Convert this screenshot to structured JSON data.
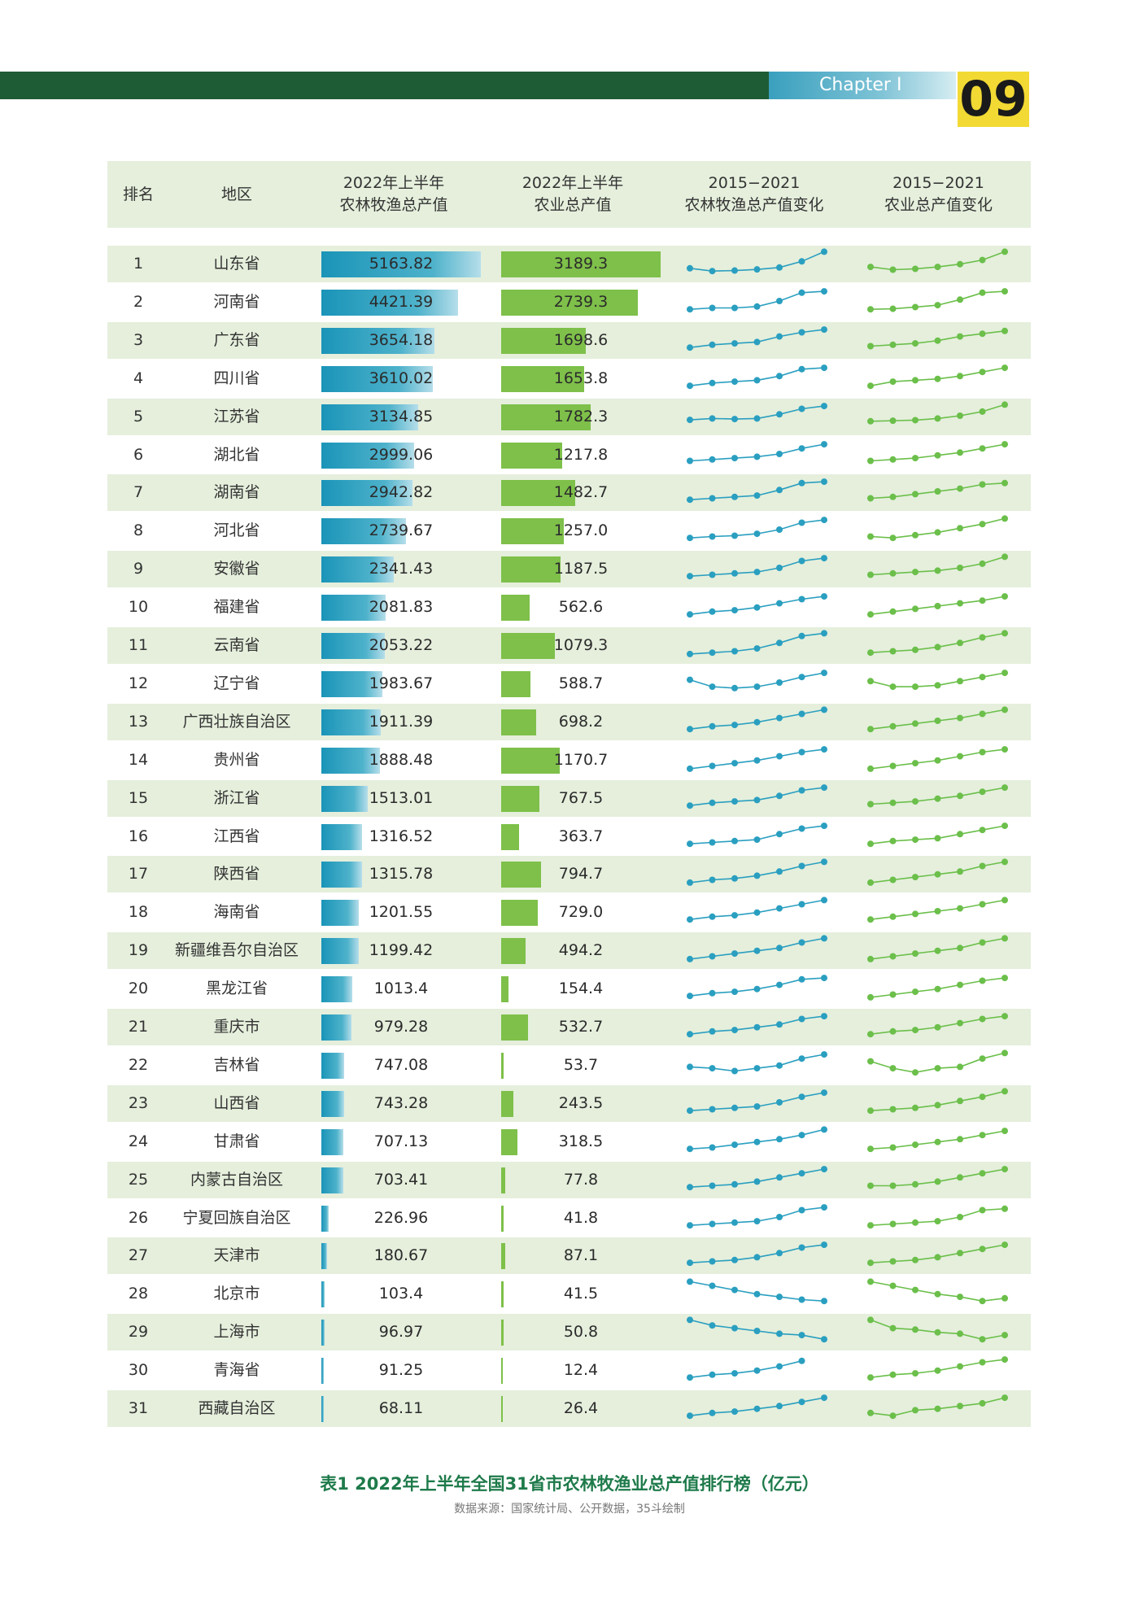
{
  "header": {
    "chapter": "Chapter I",
    "page_number": "09"
  },
  "table": {
    "columns": [
      "排名",
      "地区",
      "2022年上半年\n农林牧渔总产值",
      "2022年上半年\n农业总产值",
      "2015−2021\n农林牧渔总产值变化",
      "2015−2021\n农业总产值变化"
    ],
    "rows": [
      {
        "rank": "1",
        "region": "山东省",
        "v1": "5163.82",
        "v2": "3189.3",
        "t1": [
          0.3,
          0.2,
          0.22,
          0.26,
          0.33,
          0.55,
          0.9
        ],
        "t2": [
          0.35,
          0.25,
          0.28,
          0.35,
          0.45,
          0.6,
          0.9
        ]
      },
      {
        "rank": "2",
        "region": "河南省",
        "v1": "4421.39",
        "v2": "2739.3",
        "t1": [
          0.2,
          0.25,
          0.25,
          0.3,
          0.5,
          0.8,
          0.85
        ],
        "t2": [
          0.2,
          0.22,
          0.28,
          0.35,
          0.55,
          0.8,
          0.85
        ]
      },
      {
        "rank": "3",
        "region": "广东省",
        "v1": "3654.18",
        "v2": "1698.6",
        "t1": [
          0.2,
          0.3,
          0.35,
          0.4,
          0.6,
          0.75,
          0.85
        ],
        "t2": [
          0.25,
          0.3,
          0.35,
          0.45,
          0.6,
          0.7,
          0.8
        ]
      },
      {
        "rank": "4",
        "region": "四川省",
        "v1": "3610.02",
        "v2": "1653.8",
        "t1": [
          0.2,
          0.3,
          0.35,
          0.4,
          0.55,
          0.8,
          0.85
        ],
        "t2": [
          0.2,
          0.35,
          0.4,
          0.45,
          0.55,
          0.7,
          0.85
        ]
      },
      {
        "rank": "5",
        "region": "江苏省",
        "v1": "3134.85",
        "v2": "1782.3",
        "t1": [
          0.35,
          0.4,
          0.38,
          0.4,
          0.55,
          0.75,
          0.85
        ],
        "t2": [
          0.3,
          0.32,
          0.34,
          0.4,
          0.5,
          0.65,
          0.9
        ]
      },
      {
        "rank": "6",
        "region": "湖北省",
        "v1": "2999.06",
        "v2": "1217.8",
        "t1": [
          0.25,
          0.3,
          0.35,
          0.4,
          0.5,
          0.7,
          0.85
        ],
        "t2": [
          0.25,
          0.3,
          0.35,
          0.45,
          0.55,
          0.7,
          0.85
        ]
      },
      {
        "rank": "7",
        "region": "湖南省",
        "v1": "2942.82",
        "v2": "1482.7",
        "t1": [
          0.2,
          0.25,
          0.3,
          0.35,
          0.55,
          0.8,
          0.85
        ],
        "t2": [
          0.25,
          0.3,
          0.4,
          0.5,
          0.6,
          0.75,
          0.8
        ]
      },
      {
        "rank": "8",
        "region": "河北省",
        "v1": "2739.67",
        "v2": "1257.0",
        "t1": [
          0.2,
          0.25,
          0.28,
          0.35,
          0.5,
          0.75,
          0.85
        ],
        "t2": [
          0.25,
          0.2,
          0.3,
          0.4,
          0.55,
          0.7,
          0.9
        ]
      },
      {
        "rank": "9",
        "region": "安徽省",
        "v1": "2341.43",
        "v2": "1187.5",
        "t1": [
          0.2,
          0.25,
          0.3,
          0.35,
          0.5,
          0.75,
          0.85
        ],
        "t2": [
          0.25,
          0.3,
          0.35,
          0.4,
          0.5,
          0.65,
          0.9
        ]
      },
      {
        "rank": "10",
        "region": "福建省",
        "v1": "2081.83",
        "v2": "562.6",
        "t1": [
          0.2,
          0.3,
          0.35,
          0.45,
          0.6,
          0.75,
          0.85
        ],
        "t2": [
          0.2,
          0.3,
          0.4,
          0.5,
          0.6,
          0.7,
          0.85
        ]
      },
      {
        "rank": "11",
        "region": "云南省",
        "v1": "2053.22",
        "v2": "1079.3",
        "t1": [
          0.15,
          0.2,
          0.25,
          0.35,
          0.55,
          0.8,
          0.9
        ],
        "t2": [
          0.2,
          0.25,
          0.3,
          0.4,
          0.55,
          0.75,
          0.9
        ]
      },
      {
        "rank": "12",
        "region": "辽宁省",
        "v1": "1983.67",
        "v2": "588.7",
        "t1": [
          0.6,
          0.35,
          0.3,
          0.35,
          0.5,
          0.7,
          0.85
        ],
        "t2": [
          0.55,
          0.35,
          0.35,
          0.4,
          0.55,
          0.7,
          0.85
        ]
      },
      {
        "rank": "13",
        "region": "广西壮族自治区",
        "v1": "1911.39",
        "v2": "698.2",
        "t1": [
          0.2,
          0.3,
          0.35,
          0.45,
          0.6,
          0.75,
          0.9
        ],
        "t2": [
          0.2,
          0.3,
          0.4,
          0.5,
          0.6,
          0.75,
          0.9
        ]
      },
      {
        "rank": "14",
        "region": "贵州省",
        "v1": "1888.48",
        "v2": "1170.7",
        "t1": [
          0.15,
          0.25,
          0.35,
          0.45,
          0.6,
          0.75,
          0.85
        ],
        "t2": [
          0.15,
          0.25,
          0.35,
          0.45,
          0.6,
          0.75,
          0.85
        ]
      },
      {
        "rank": "15",
        "region": "浙江省",
        "v1": "1513.01",
        "v2": "767.5",
        "t1": [
          0.2,
          0.3,
          0.35,
          0.4,
          0.55,
          0.75,
          0.85
        ],
        "t2": [
          0.25,
          0.3,
          0.35,
          0.45,
          0.55,
          0.7,
          0.85
        ]
      },
      {
        "rank": "16",
        "region": "江西省",
        "v1": "1316.52",
        "v2": "363.7",
        "t1": [
          0.2,
          0.25,
          0.3,
          0.35,
          0.55,
          0.75,
          0.85
        ],
        "t2": [
          0.2,
          0.3,
          0.35,
          0.4,
          0.55,
          0.7,
          0.85
        ]
      },
      {
        "rank": "17",
        "region": "陕西省",
        "v1": "1315.78",
        "v2": "794.7",
        "t1": [
          0.15,
          0.25,
          0.3,
          0.4,
          0.55,
          0.75,
          0.9
        ],
        "t2": [
          0.15,
          0.25,
          0.35,
          0.45,
          0.55,
          0.75,
          0.9
        ]
      },
      {
        "rank": "18",
        "region": "海南省",
        "v1": "1201.55",
        "v2": "729.0",
        "t1": [
          0.2,
          0.3,
          0.35,
          0.45,
          0.6,
          0.75,
          0.9
        ],
        "t2": [
          0.2,
          0.3,
          0.4,
          0.5,
          0.6,
          0.75,
          0.9
        ]
      },
      {
        "rank": "19",
        "region": "新疆维吾尔自治区",
        "v1": "1199.42",
        "v2": "494.2",
        "t1": [
          0.15,
          0.25,
          0.35,
          0.45,
          0.55,
          0.75,
          0.9
        ],
        "t2": [
          0.15,
          0.25,
          0.35,
          0.45,
          0.55,
          0.75,
          0.9
        ]
      },
      {
        "rank": "20",
        "region": "黑龙江省",
        "v1": "1013.4",
        "v2": "154.4",
        "t1": [
          0.2,
          0.3,
          0.35,
          0.45,
          0.6,
          0.8,
          0.85
        ],
        "t2": [
          0.15,
          0.25,
          0.35,
          0.45,
          0.6,
          0.75,
          0.85
        ]
      },
      {
        "rank": "21",
        "region": "重庆市",
        "v1": "979.28",
        "v2": "532.7",
        "t1": [
          0.2,
          0.3,
          0.35,
          0.45,
          0.55,
          0.75,
          0.85
        ],
        "t2": [
          0.2,
          0.3,
          0.35,
          0.45,
          0.6,
          0.75,
          0.85
        ]
      },
      {
        "rank": "22",
        "region": "吉林省",
        "v1": "747.08",
        "v2": "53.7",
        "t1": [
          0.4,
          0.35,
          0.25,
          0.35,
          0.45,
          0.7,
          0.85
        ],
        "t2": [
          0.6,
          0.35,
          0.2,
          0.35,
          0.4,
          0.7,
          0.9
        ]
      },
      {
        "rank": "23",
        "region": "山西省",
        "v1": "743.28",
        "v2": "243.5",
        "t1": [
          0.2,
          0.25,
          0.3,
          0.35,
          0.5,
          0.7,
          0.85
        ],
        "t2": [
          0.2,
          0.25,
          0.3,
          0.4,
          0.55,
          0.7,
          0.9
        ]
      },
      {
        "rank": "24",
        "region": "甘肃省",
        "v1": "707.13",
        "v2": "318.5",
        "t1": [
          0.2,
          0.25,
          0.35,
          0.45,
          0.55,
          0.7,
          0.9
        ],
        "t2": [
          0.2,
          0.25,
          0.35,
          0.45,
          0.55,
          0.7,
          0.85
        ]
      },
      {
        "rank": "25",
        "region": "内蒙古自治区",
        "v1": "703.41",
        "v2": "77.8",
        "t1": [
          0.2,
          0.25,
          0.3,
          0.4,
          0.55,
          0.7,
          0.85
        ],
        "t2": [
          0.25,
          0.25,
          0.3,
          0.4,
          0.55,
          0.7,
          0.85
        ]
      },
      {
        "rank": "26",
        "region": "宁夏回族自治区",
        "v1": "226.96",
        "v2": "41.8",
        "t1": [
          0.2,
          0.25,
          0.3,
          0.35,
          0.5,
          0.75,
          0.85
        ],
        "t2": [
          0.2,
          0.25,
          0.3,
          0.35,
          0.5,
          0.75,
          0.8
        ]
      },
      {
        "rank": "27",
        "region": "天津市",
        "v1": "180.67",
        "v2": "87.1",
        "t1": [
          0.2,
          0.25,
          0.3,
          0.4,
          0.55,
          0.75,
          0.85
        ],
        "t2": [
          0.2,
          0.25,
          0.3,
          0.4,
          0.55,
          0.7,
          0.85
        ]
      },
      {
        "rank": "28",
        "region": "北京市",
        "v1": "103.4",
        "v2": "41.5",
        "t1": [
          0.9,
          0.75,
          0.6,
          0.45,
          0.35,
          0.25,
          0.2
        ],
        "t2": [
          0.9,
          0.75,
          0.6,
          0.45,
          0.35,
          0.2,
          0.3
        ]
      },
      {
        "rank": "29",
        "region": "上海市",
        "v1": "96.97",
        "v2": "50.8",
        "t1": [
          0.9,
          0.7,
          0.6,
          0.5,
          0.4,
          0.35,
          0.2
        ],
        "t2": [
          0.9,
          0.6,
          0.55,
          0.45,
          0.4,
          0.2,
          0.35
        ]
      },
      {
        "rank": "30",
        "region": "青海省",
        "v1": "91.25",
        "v2": "12.4",
        "t1": [
          0.2,
          0.3,
          0.35,
          0.45,
          0.6,
          0.8,
          null
        ],
        "t2": [
          0.2,
          0.3,
          0.35,
          0.45,
          0.6,
          0.75,
          0.85
        ]
      },
      {
        "rank": "31",
        "region": "西藏自治区",
        "v1": "68.11",
        "v2": "26.4",
        "t1": [
          0.2,
          0.3,
          0.35,
          0.45,
          0.55,
          0.7,
          0.85
        ],
        "t2": [
          0.3,
          0.2,
          0.4,
          0.45,
          0.55,
          0.65,
          0.85
        ]
      }
    ]
  },
  "caption": "表1  2022年上半年全国31省市农林牧渔业总产值排行榜（亿元）",
  "source": "数据来源：国家统计局、公开数据，35斗绘制",
  "colors": {
    "dark_green": "#1e5c36",
    "teal": "#1a94b8",
    "green": "#7ec04a",
    "shade": "#e5efdc",
    "line_teal": "#2a9fc0",
    "line_green": "#6bbf4a",
    "caption": "#1e7a4a"
  }
}
